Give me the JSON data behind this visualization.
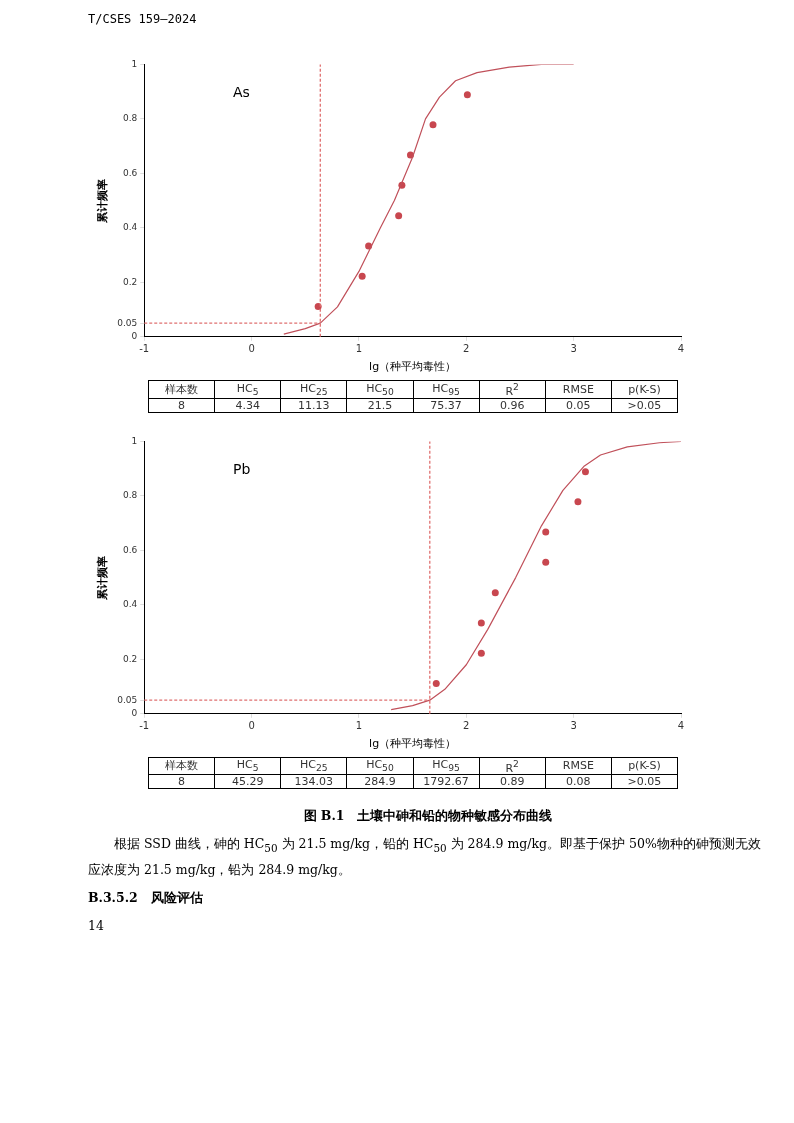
{
  "chart_data": [
    {
      "type": "scatter",
      "title": "As",
      "xlabel": "lg（种平均毒性）",
      "ylabel": "累计频率",
      "xlim": [
        -1,
        4
      ],
      "xticks": [
        -1,
        0,
        1,
        2,
        3,
        4
      ],
      "ylim": [
        0,
        1
      ],
      "yticks": [
        0,
        0.05,
        0.2,
        0.4,
        0.6,
        0.8,
        1
      ],
      "grid": false,
      "legend": false,
      "series": [
        {
          "type": "line",
          "marker": "none",
          "color": "#c0505a",
          "x": [
            0.3,
            0.5,
            0.64,
            0.8,
            1.0,
            1.2,
            1.33,
            1.5,
            1.62,
            1.75,
            1.9,
            2.1,
            2.4,
            2.7,
            3
          ],
          "values": [
            0.01,
            0.03,
            0.05,
            0.11,
            0.24,
            0.4,
            0.5,
            0.66,
            0.8,
            0.88,
            0.94,
            0.97,
            0.99,
            1,
            1
          ]
        },
        {
          "marker": "circle",
          "color": "#c8474f",
          "x": [
            0.62,
            1.03,
            1.09,
            1.37,
            1.4,
            1.48,
            1.69,
            2.01
          ],
          "values": [
            0.111,
            0.222,
            0.333,
            0.444,
            0.556,
            0.667,
            0.778,
            0.889
          ]
        }
      ],
      "ref_lines": [
        {
          "axis": "y",
          "value": 0.05,
          "color": "#e07070",
          "line_style": "dotted"
        },
        {
          "axis": "x",
          "value": 0.64,
          "color": "#e07070",
          "line_style": "dotted"
        }
      ],
      "annotations": [
        "样本数",
        "HC$_{5}$",
        "HC$_{25}$",
        "HC$_{50}$",
        "HC$_{95}$",
        "R$^{2}$",
        "RMSE",
        "p(K-S)",
        "8",
        "4.34",
        "11.13",
        "21.5",
        "75.37",
        "0.96",
        "0.05",
        ">0.05",
        "T/CSES 159—2024"
      ]
    },
    {
      "type": "scatter",
      "title": "Pb",
      "xlabel": "lg（种平均毒性）",
      "ylabel": "累计频率",
      "xlim": [
        -1,
        4
      ],
      "xticks": [
        -1,
        0,
        1,
        2,
        3,
        4
      ],
      "ylim": [
        0,
        1
      ],
      "yticks": [
        0,
        0.05,
        0.2,
        0.4,
        0.6,
        0.8,
        1
      ],
      "grid": false,
      "legend": false,
      "series": [
        {
          "type": "line",
          "marker": "none",
          "color": "#c0505a",
          "x": [
            1.3,
            1.5,
            1.66,
            1.8,
            2.0,
            2.2,
            2.46,
            2.7,
            2.9,
            3.1,
            3.25,
            3.5,
            3.8,
            4
          ],
          "values": [
            0.015,
            0.03,
            0.05,
            0.09,
            0.18,
            0.31,
            0.5,
            0.69,
            0.82,
            0.91,
            0.95,
            0.98,
            0.995,
            1
          ]
        },
        {
          "marker": "circle",
          "color": "#c8474f",
          "x": [
            1.72,
            2.14,
            2.14,
            2.27,
            2.74,
            2.74,
            3.04,
            3.11
          ],
          "values": [
            0.111,
            0.222,
            0.333,
            0.444,
            0.556,
            0.667,
            0.778,
            0.889
          ]
        }
      ],
      "ref_lines": [
        {
          "axis": "y",
          "value": 0.05,
          "color": "#e07070",
          "line_style": "dotted"
        },
        {
          "axis": "x",
          "value": 1.66,
          "color": "#e07070",
          "line_style": "dotted"
        }
      ],
      "annotations": [
        "样本数",
        "HC$_{5}$",
        "HC$_{25}$",
        "HC$_{50}$",
        "HC$_{95}$",
        "R$^{2}$",
        "RMSE",
        "p(K-S)",
        "8",
        "45.29",
        "134.03",
        "284.9",
        "1792.67",
        "0.89",
        "0.08",
        ">0.05",
        "图 B.1　土壤中砷和铅的物种敏感分布曲线",
        "根据 SSD 曲线，砷的 HC$_{50}$ 为 21.5 mg/kg，铅的 HC$_{50}$ 为 284.9 mg/kg。即基于保护 50%物种的砷预测无效应浓度为 21.5 mg/kg，铅为 284.9 mg/kg。",
        "B.3.5.2　风险评估",
        "14"
      ]
    }
  ]
}
